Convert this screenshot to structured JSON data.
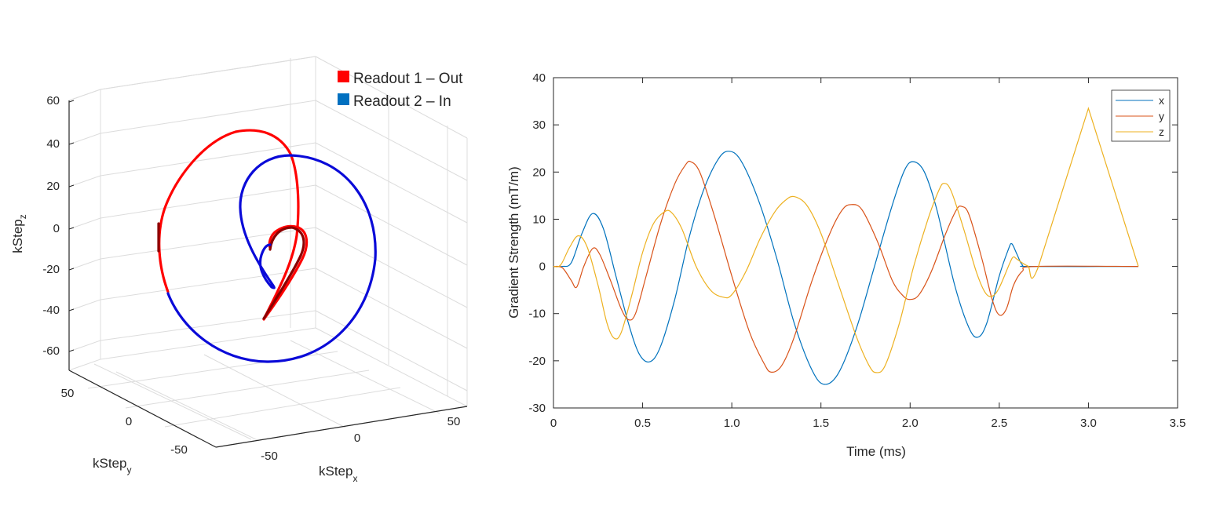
{
  "chart_data": [
    {
      "type": "line",
      "subtype": "3d-trajectory",
      "title": "",
      "xlabel": {
        "base": "kStep",
        "sub": "x"
      },
      "ylabel": {
        "base": "kStep",
        "sub": "y"
      },
      "zlabel": {
        "base": "kStep",
        "sub": "z"
      },
      "x_ticks": [
        "-50",
        "0",
        "50"
      ],
      "y_ticks": [
        "50",
        "0",
        "-50"
      ],
      "z_ticks": [
        "60",
        "40",
        "20",
        "0",
        "-20",
        "-40",
        "-60"
      ],
      "zlim": [
        -60,
        60
      ],
      "grid": true,
      "legend_position": "top-right",
      "series": [
        {
          "name": "Readout 1 – Out",
          "color": "#ff0000",
          "description": "outward trajectory from center (-45,-45) through small loop, large arc to z=45 and back down to z=-30"
        },
        {
          "name": "Readout 2 – In",
          "color": "#0070c0",
          "description": "inward trajectory: large circle from z=-65 up to z=35, then spiral into center near z=-30"
        }
      ]
    },
    {
      "type": "line",
      "title": "",
      "xlabel": "Time (ms)",
      "ylabel": "Gradient Strength (mT/m)",
      "xlim": [
        0,
        3.5
      ],
      "ylim": [
        -30,
        40
      ],
      "x_ticks": [
        "0",
        "0.5",
        "1.0",
        "1.5",
        "2.0",
        "2.5",
        "3.0",
        "3.5"
      ],
      "y_ticks": [
        "40",
        "30",
        "20",
        "10",
        "0",
        "-10",
        "-20",
        "-30"
      ],
      "grid": false,
      "legend_position": "top-right",
      "series": [
        {
          "name": "x",
          "color": "#0072bd",
          "points": [
            [
              0,
              0
            ],
            [
              0.05,
              0
            ],
            [
              0.1,
              0.8
            ],
            [
              0.16,
              7
            ],
            [
              0.22,
              11.2
            ],
            [
              0.28,
              8
            ],
            [
              0.35,
              -2
            ],
            [
              0.42,
              -12
            ],
            [
              0.48,
              -18.5
            ],
            [
              0.54,
              -20.2
            ],
            [
              0.6,
              -17
            ],
            [
              0.68,
              -7
            ],
            [
              0.76,
              6
            ],
            [
              0.84,
              16
            ],
            [
              0.92,
              22.5
            ],
            [
              0.98,
              24.4
            ],
            [
              1.05,
              22.5
            ],
            [
              1.15,
              14
            ],
            [
              1.25,
              2
            ],
            [
              1.35,
              -12
            ],
            [
              1.45,
              -22
            ],
            [
              1.52,
              -25
            ],
            [
              1.6,
              -22.5
            ],
            [
              1.7,
              -13
            ],
            [
              1.8,
              0
            ],
            [
              1.9,
              13
            ],
            [
              1.97,
              20.5
            ],
            [
              2.02,
              22.2
            ],
            [
              2.08,
              20
            ],
            [
              2.15,
              12
            ],
            [
              2.25,
              -4
            ],
            [
              2.33,
              -13
            ],
            [
              2.38,
              -15
            ],
            [
              2.43,
              -12
            ],
            [
              2.5,
              -2
            ],
            [
              2.55,
              3.5
            ],
            [
              2.57,
              4.8
            ],
            [
              2.6,
              2.5
            ],
            [
              2.63,
              0.3
            ],
            [
              2.68,
              0
            ],
            [
              3.28,
              0
            ]
          ]
        },
        {
          "name": "y",
          "color": "#d95319",
          "points": [
            [
              0,
              0
            ],
            [
              0.05,
              -0.3
            ],
            [
              0.1,
              -3
            ],
            [
              0.13,
              -4.4
            ],
            [
              0.17,
              0
            ],
            [
              0.22,
              3.8
            ],
            [
              0.26,
              2.5
            ],
            [
              0.32,
              -3
            ],
            [
              0.38,
              -9
            ],
            [
              0.42,
              -11.3
            ],
            [
              0.46,
              -10
            ],
            [
              0.52,
              -2
            ],
            [
              0.6,
              9
            ],
            [
              0.68,
              17.5
            ],
            [
              0.74,
              21.5
            ],
            [
              0.77,
              22.2
            ],
            [
              0.82,
              20
            ],
            [
              0.9,
              11
            ],
            [
              1.0,
              -2
            ],
            [
              1.1,
              -14
            ],
            [
              1.18,
              -20.5
            ],
            [
              1.22,
              -22.4
            ],
            [
              1.28,
              -21
            ],
            [
              1.35,
              -15
            ],
            [
              1.45,
              -3
            ],
            [
              1.55,
              7
            ],
            [
              1.62,
              12
            ],
            [
              1.67,
              13.1
            ],
            [
              1.73,
              12
            ],
            [
              1.82,
              5
            ],
            [
              1.9,
              -3
            ],
            [
              1.96,
              -6.2
            ],
            [
              2.0,
              -7
            ],
            [
              2.05,
              -6
            ],
            [
              2.12,
              -1
            ],
            [
              2.2,
              7
            ],
            [
              2.26,
              12
            ],
            [
              2.29,
              12.7
            ],
            [
              2.33,
              11
            ],
            [
              2.4,
              2
            ],
            [
              2.46,
              -7
            ],
            [
              2.5,
              -10.3
            ],
            [
              2.54,
              -9
            ],
            [
              2.58,
              -4
            ],
            [
              2.63,
              -1
            ],
            [
              2.7,
              0
            ],
            [
              3.28,
              0
            ]
          ]
        },
        {
          "name": "z",
          "color": "#edb120",
          "points": [
            [
              0,
              0
            ],
            [
              0.04,
              0.3
            ],
            [
              0.09,
              4
            ],
            [
              0.14,
              6.5
            ],
            [
              0.19,
              4
            ],
            [
              0.25,
              -4
            ],
            [
              0.3,
              -12
            ],
            [
              0.34,
              -15.2
            ],
            [
              0.38,
              -14
            ],
            [
              0.44,
              -6
            ],
            [
              0.5,
              3
            ],
            [
              0.56,
              9
            ],
            [
              0.62,
              11.5
            ],
            [
              0.66,
              11.5
            ],
            [
              0.72,
              8
            ],
            [
              0.8,
              0
            ],
            [
              0.88,
              -5
            ],
            [
              0.95,
              -6.5
            ],
            [
              1.0,
              -6
            ],
            [
              1.08,
              -1
            ],
            [
              1.16,
              6
            ],
            [
              1.24,
              11.5
            ],
            [
              1.3,
              14
            ],
            [
              1.35,
              14.8
            ],
            [
              1.42,
              13
            ],
            [
              1.5,
              7
            ],
            [
              1.6,
              -4
            ],
            [
              1.7,
              -15
            ],
            [
              1.77,
              -21
            ],
            [
              1.81,
              -22.5
            ],
            [
              1.86,
              -21
            ],
            [
              1.94,
              -12
            ],
            [
              2.02,
              0
            ],
            [
              2.1,
              10
            ],
            [
              2.16,
              16
            ],
            [
              2.19,
              17.6
            ],
            [
              2.23,
              16
            ],
            [
              2.3,
              8
            ],
            [
              2.37,
              -1
            ],
            [
              2.42,
              -5.5
            ],
            [
              2.46,
              -6.3
            ],
            [
              2.5,
              -4.5
            ],
            [
              2.56,
              0.8
            ],
            [
              2.58,
              2
            ],
            [
              2.6,
              1.5
            ],
            [
              2.66,
              0.1
            ],
            [
              2.72,
              0
            ],
            [
              3.0,
              33.5
            ],
            [
              3.28,
              0
            ]
          ]
        }
      ]
    }
  ]
}
